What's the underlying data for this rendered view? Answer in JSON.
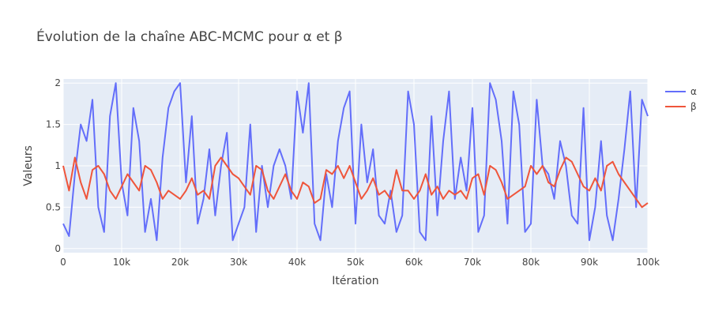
{
  "chart_data": {
    "type": "line",
    "title": "Évolution de la chaîne ABC-MCMC pour α et β",
    "xlabel": "Itération",
    "ylabel": "Valeurs",
    "xlim": [
      0,
      100000
    ],
    "ylim": [
      -0.05,
      2.05
    ],
    "x_ticks": [
      0,
      10000,
      20000,
      30000,
      40000,
      50000,
      60000,
      70000,
      80000,
      90000,
      100000
    ],
    "x_tick_labels": [
      "0",
      "10k",
      "20k",
      "30k",
      "40k",
      "50k",
      "60k",
      "70k",
      "80k",
      "90k",
      "100k"
    ],
    "y_ticks": [
      0,
      0.5,
      1,
      1.5,
      2
    ],
    "y_tick_labels": [
      "0",
      "0.5",
      "1",
      "1.5",
      "2"
    ],
    "grid": true,
    "legend_position": "top-right",
    "plot_background": "#e5ecf6",
    "series": [
      {
        "name": "α",
        "color": "#636efa",
        "x": [
          0,
          1000,
          2000,
          3000,
          4000,
          5000,
          6000,
          7000,
          8000,
          9000,
          10000,
          11000,
          12000,
          13000,
          14000,
          15000,
          16000,
          17000,
          18000,
          19000,
          20000,
          21000,
          22000,
          23000,
          24000,
          25000,
          26000,
          27000,
          28000,
          29000,
          30000,
          31000,
          32000,
          33000,
          34000,
          35000,
          36000,
          37000,
          38000,
          39000,
          40000,
          41000,
          42000,
          43000,
          44000,
          45000,
          46000,
          47000,
          48000,
          49000,
          50000,
          51000,
          52000,
          53000,
          54000,
          55000,
          56000,
          57000,
          58000,
          59000,
          60000,
          61000,
          62000,
          63000,
          64000,
          65000,
          66000,
          67000,
          68000,
          69000,
          70000,
          71000,
          72000,
          73000,
          74000,
          75000,
          76000,
          77000,
          78000,
          79000,
          80000,
          81000,
          82000,
          83000,
          84000,
          85000,
          86000,
          87000,
          88000,
          89000,
          90000,
          91000,
          92000,
          93000,
          94000,
          95000,
          96000,
          97000,
          98000,
          99000,
          100000
        ],
        "values": [
          0.3,
          0.15,
          0.9,
          1.5,
          1.3,
          1.8,
          0.5,
          0.2,
          1.6,
          2.0,
          0.8,
          0.4,
          1.7,
          1.3,
          0.2,
          0.6,
          0.1,
          1.1,
          1.7,
          1.9,
          2.0,
          0.8,
          1.6,
          0.3,
          0.6,
          1.2,
          0.4,
          1.0,
          1.4,
          0.1,
          0.3,
          0.5,
          1.5,
          0.2,
          1.0,
          0.5,
          1.0,
          1.2,
          1.0,
          0.6,
          1.9,
          1.4,
          2.0,
          0.3,
          0.1,
          0.9,
          0.5,
          1.3,
          1.7,
          1.9,
          0.3,
          1.5,
          0.8,
          1.2,
          0.4,
          0.3,
          0.7,
          0.2,
          0.4,
          1.9,
          1.5,
          0.2,
          0.1,
          1.6,
          0.4,
          1.3,
          1.9,
          0.6,
          1.1,
          0.7,
          1.7,
          0.2,
          0.4,
          2.0,
          1.8,
          1.3,
          0.3,
          1.9,
          1.5,
          0.2,
          0.3,
          1.8,
          1.0,
          0.9,
          0.6,
          1.3,
          1.0,
          0.4,
          0.3,
          1.7,
          0.1,
          0.5,
          1.3,
          0.4,
          0.1,
          0.6,
          1.2,
          1.9,
          0.5,
          1.8,
          1.6
        ]
      },
      {
        "name": "β",
        "color": "#ef553b",
        "x": [
          0,
          1000,
          2000,
          3000,
          4000,
          5000,
          6000,
          7000,
          8000,
          9000,
          10000,
          11000,
          12000,
          13000,
          14000,
          15000,
          16000,
          17000,
          18000,
          19000,
          20000,
          21000,
          22000,
          23000,
          24000,
          25000,
          26000,
          27000,
          28000,
          29000,
          30000,
          31000,
          32000,
          33000,
          34000,
          35000,
          36000,
          37000,
          38000,
          39000,
          40000,
          41000,
          42000,
          43000,
          44000,
          45000,
          46000,
          47000,
          48000,
          49000,
          50000,
          51000,
          52000,
          53000,
          54000,
          55000,
          56000,
          57000,
          58000,
          59000,
          60000,
          61000,
          62000,
          63000,
          64000,
          65000,
          66000,
          67000,
          68000,
          69000,
          70000,
          71000,
          72000,
          73000,
          74000,
          75000,
          76000,
          77000,
          78000,
          79000,
          80000,
          81000,
          82000,
          83000,
          84000,
          85000,
          86000,
          87000,
          88000,
          89000,
          90000,
          91000,
          92000,
          93000,
          94000,
          95000,
          96000,
          97000,
          98000,
          99000,
          100000
        ],
        "values": [
          1.0,
          0.7,
          1.1,
          0.8,
          0.6,
          0.95,
          1.0,
          0.9,
          0.7,
          0.6,
          0.75,
          0.9,
          0.8,
          0.7,
          1.0,
          0.95,
          0.8,
          0.6,
          0.7,
          0.65,
          0.6,
          0.7,
          0.85,
          0.65,
          0.7,
          0.6,
          1.0,
          1.1,
          1.0,
          0.9,
          0.85,
          0.75,
          0.65,
          1.0,
          0.95,
          0.7,
          0.6,
          0.75,
          0.9,
          0.7,
          0.6,
          0.8,
          0.75,
          0.55,
          0.6,
          0.95,
          0.9,
          1.0,
          0.85,
          1.0,
          0.8,
          0.6,
          0.7,
          0.85,
          0.65,
          0.7,
          0.6,
          0.95,
          0.7,
          0.7,
          0.6,
          0.7,
          0.9,
          0.65,
          0.75,
          0.6,
          0.7,
          0.65,
          0.7,
          0.6,
          0.85,
          0.9,
          0.65,
          1.0,
          0.95,
          0.8,
          0.6,
          0.65,
          0.7,
          0.75,
          1.0,
          0.9,
          1.0,
          0.8,
          0.75,
          0.95,
          1.1,
          1.05,
          0.9,
          0.75,
          0.7,
          0.85,
          0.7,
          1.0,
          1.05,
          0.9,
          0.8,
          0.7,
          0.6,
          0.5,
          0.55
        ]
      }
    ]
  }
}
